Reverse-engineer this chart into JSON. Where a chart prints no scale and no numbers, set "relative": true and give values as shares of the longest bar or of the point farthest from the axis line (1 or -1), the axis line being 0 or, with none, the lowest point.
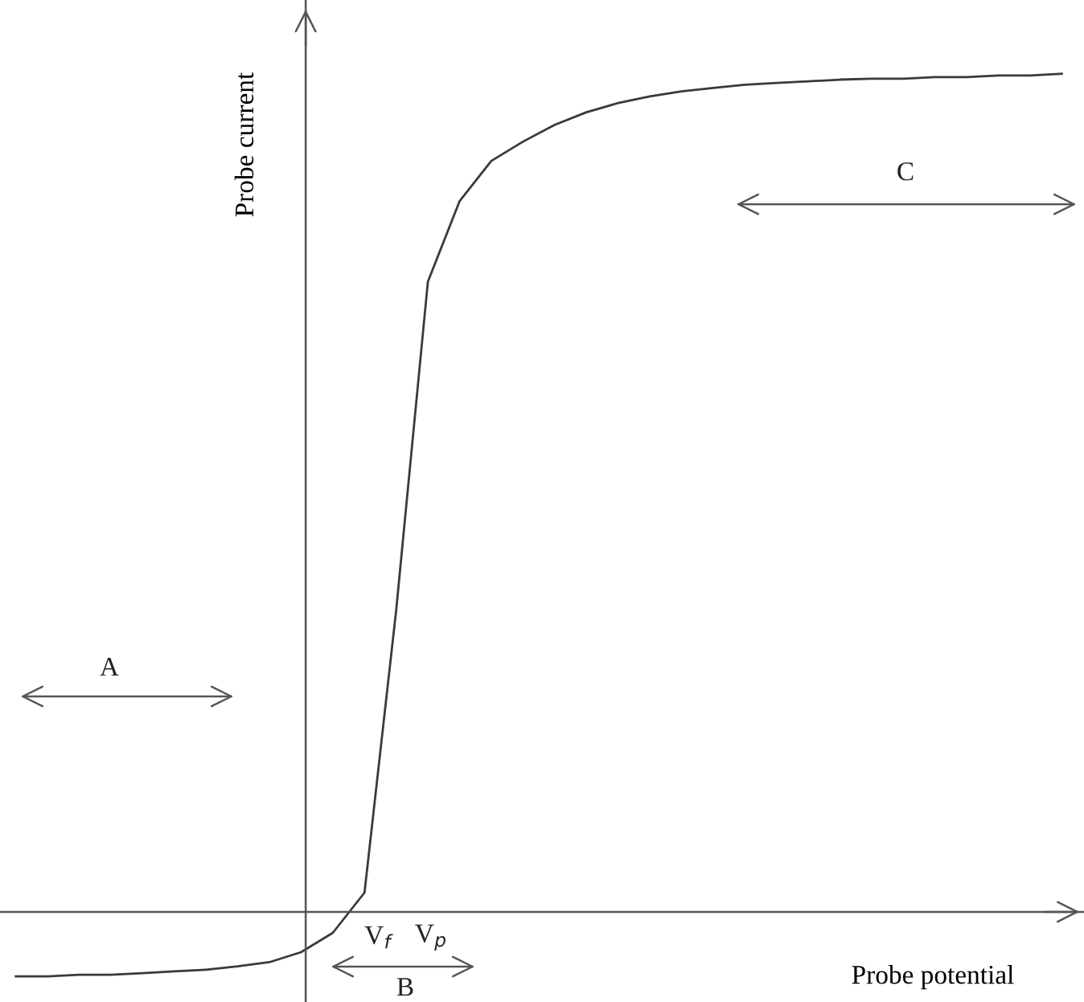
{
  "chart_data": {
    "type": "line",
    "relative": true,
    "xlabel": "Probe potential",
    "ylabel": "Probe current",
    "categories": [
      null,
      null,
      null,
      null,
      null,
      null,
      null,
      null,
      null,
      null,
      null,
      null,
      null,
      null,
      null,
      null,
      null,
      null,
      null,
      null,
      null,
      null,
      null,
      null,
      null,
      null,
      null,
      null,
      null,
      null,
      null,
      null,
      null,
      null
    ],
    "series": [
      {
        "color": "#3a3a3a",
        "values": [
          -0.077,
          -0.077,
          -0.075,
          -0.075,
          -0.073,
          -0.071,
          -0.069,
          -0.065,
          -0.06,
          -0.048,
          -0.025,
          0.023,
          0.36,
          0.752,
          0.848,
          0.896,
          0.919,
          0.939,
          0.954,
          0.965,
          0.973,
          0.979,
          0.983,
          0.987,
          0.989,
          0.991,
          0.993,
          0.994,
          0.994,
          0.996,
          0.996,
          0.998,
          0.998,
          1.0
        ]
      }
    ],
    "annotations": [
      "A",
      "B",
      "C",
      "V$_{f}$",
      "V$_{p}$"
    ],
    "grid": false,
    "marker": "none",
    "line_style": "solid"
  }
}
